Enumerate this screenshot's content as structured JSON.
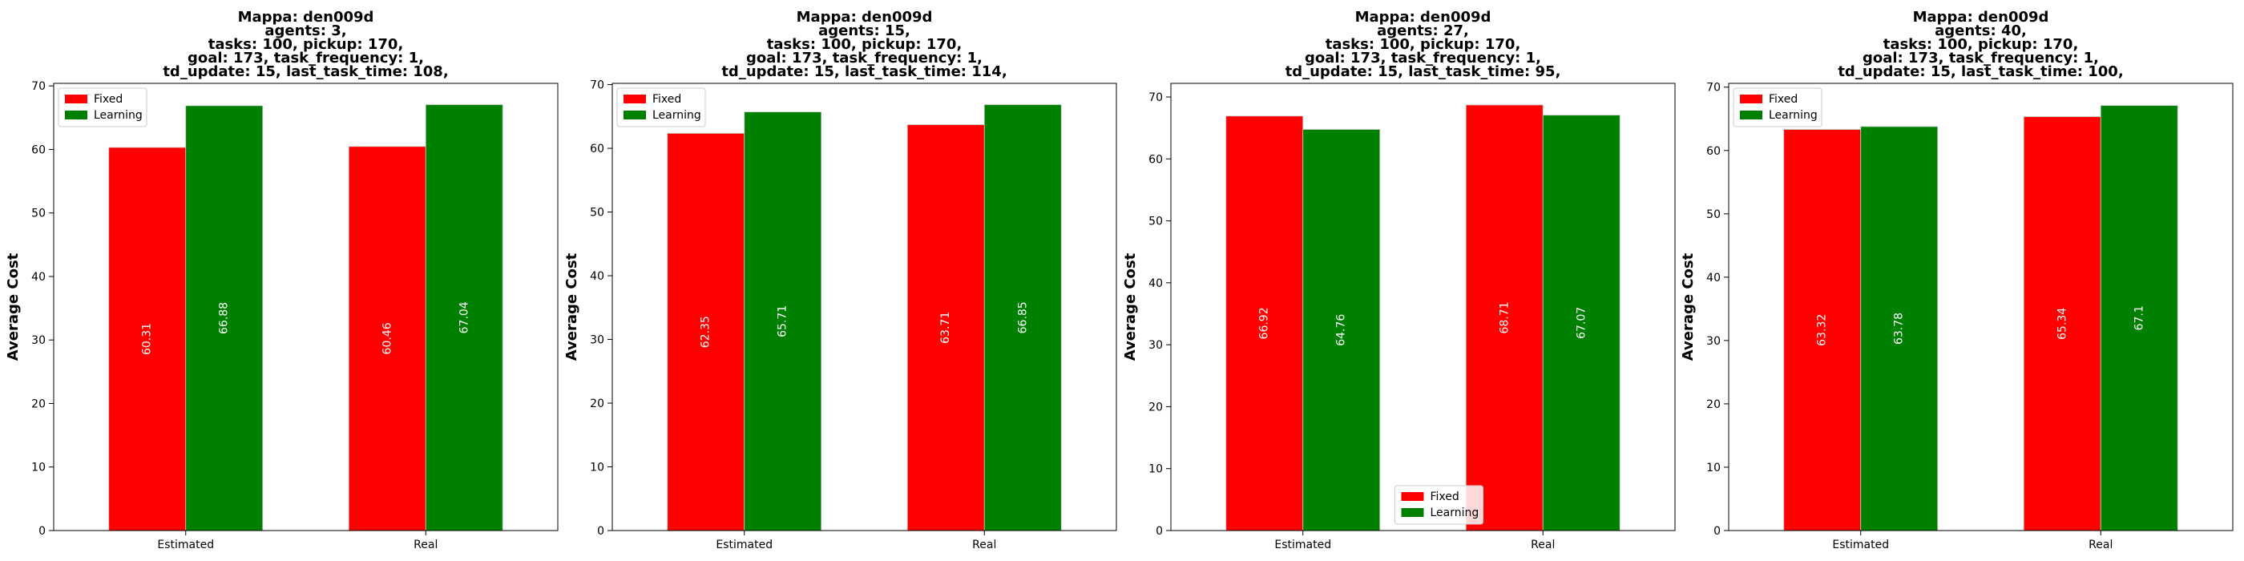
{
  "chart_data": [
    {
      "type": "bar",
      "title_lines": [
        "Mappa: den009d",
        "agents: 3,",
        "tasks: 100, pickup: 170,",
        "goal: 173, task_frequency: 1,",
        "td_update: 15, last_task_time: 108,"
      ],
      "ylabel": "Average Cost",
      "categories": [
        "Estimated",
        "Real"
      ],
      "series": [
        {
          "name": "Fixed",
          "color": "#ff0000",
          "values": [
            60.31,
            60.46
          ]
        },
        {
          "name": "Learning",
          "color": "#008000",
          "values": [
            66.88,
            67.04
          ]
        }
      ],
      "ylim": [
        0,
        70.4
      ],
      "yticks": [
        0,
        10,
        20,
        30,
        40,
        50,
        60,
        70
      ],
      "legend_position": "upper left"
    },
    {
      "type": "bar",
      "title_lines": [
        "Mappa: den009d",
        "agents: 15,",
        "tasks: 100, pickup: 170,",
        "goal: 173, task_frequency: 1,",
        "td_update: 15, last_task_time: 114,"
      ],
      "ylabel": "Average Cost",
      "categories": [
        "Estimated",
        "Real"
      ],
      "series": [
        {
          "name": "Fixed",
          "color": "#ff0000",
          "values": [
            62.35,
            63.71
          ]
        },
        {
          "name": "Learning",
          "color": "#008000",
          "values": [
            65.71,
            66.85
          ]
        }
      ],
      "ylim": [
        0,
        70.2
      ],
      "yticks": [
        0,
        10,
        20,
        30,
        40,
        50,
        60,
        70
      ],
      "legend_position": "upper left"
    },
    {
      "type": "bar",
      "title_lines": [
        "Mappa: den009d",
        "agents: 27,",
        "tasks: 100, pickup: 170,",
        "goal: 173, task_frequency: 1,",
        "td_update: 15, last_task_time: 95,"
      ],
      "ylabel": "Average Cost",
      "categories": [
        "Estimated",
        "Real"
      ],
      "series": [
        {
          "name": "Fixed",
          "color": "#ff0000",
          "values": [
            66.92,
            68.71
          ]
        },
        {
          "name": "Learning",
          "color": "#008000",
          "values": [
            64.76,
            67.07
          ]
        }
      ],
      "ylim": [
        0,
        72.2
      ],
      "yticks": [
        0,
        10,
        20,
        30,
        40,
        50,
        60,
        70
      ],
      "legend_position": "lower center"
    },
    {
      "type": "bar",
      "title_lines": [
        "Mappa: den009d",
        "agents: 40,",
        "tasks: 100, pickup: 170,",
        "goal: 173, task_frequency: 1,",
        "td_update: 15, last_task_time: 100,"
      ],
      "ylabel": "Average Cost",
      "categories": [
        "Estimated",
        "Real"
      ],
      "series": [
        {
          "name": "Fixed",
          "color": "#ff0000",
          "values": [
            63.32,
            65.34
          ]
        },
        {
          "name": "Learning",
          "color": "#008000",
          "values": [
            63.78,
            67.1
          ]
        }
      ],
      "ylim": [
        0,
        70.6
      ],
      "yticks": [
        0,
        10,
        20,
        30,
        40,
        50,
        60,
        70
      ],
      "legend_position": "upper left"
    }
  ]
}
